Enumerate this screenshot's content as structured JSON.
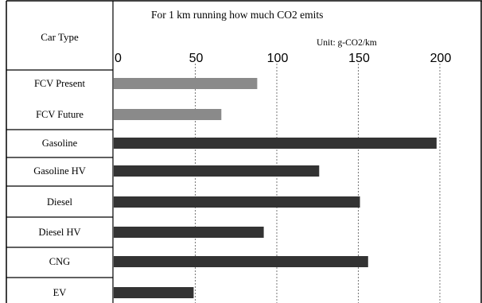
{
  "chart_data": {
    "type": "bar",
    "orientation": "horizontal",
    "title": "For 1 km running how much CO2 emits",
    "unit_label": "Unit: g-CO2/km",
    "category_header": "Car Type",
    "categories": [
      "FCV Present",
      "FCV Future",
      "Gasoline",
      "Gasoline HV",
      "Diesel",
      "Diesel HV",
      "CNG",
      "EV"
    ],
    "values": [
      88,
      66,
      198,
      126,
      151,
      92,
      156,
      49
    ],
    "bar_colors": [
      "#8a8a8a",
      "#8a8a8a",
      "#333333",
      "#333333",
      "#333333",
      "#333333",
      "#333333",
      "#333333"
    ],
    "xlim": [
      0,
      200
    ],
    "ticks": [
      "0",
      "50",
      "100",
      "150",
      "200"
    ],
    "grid": true
  }
}
